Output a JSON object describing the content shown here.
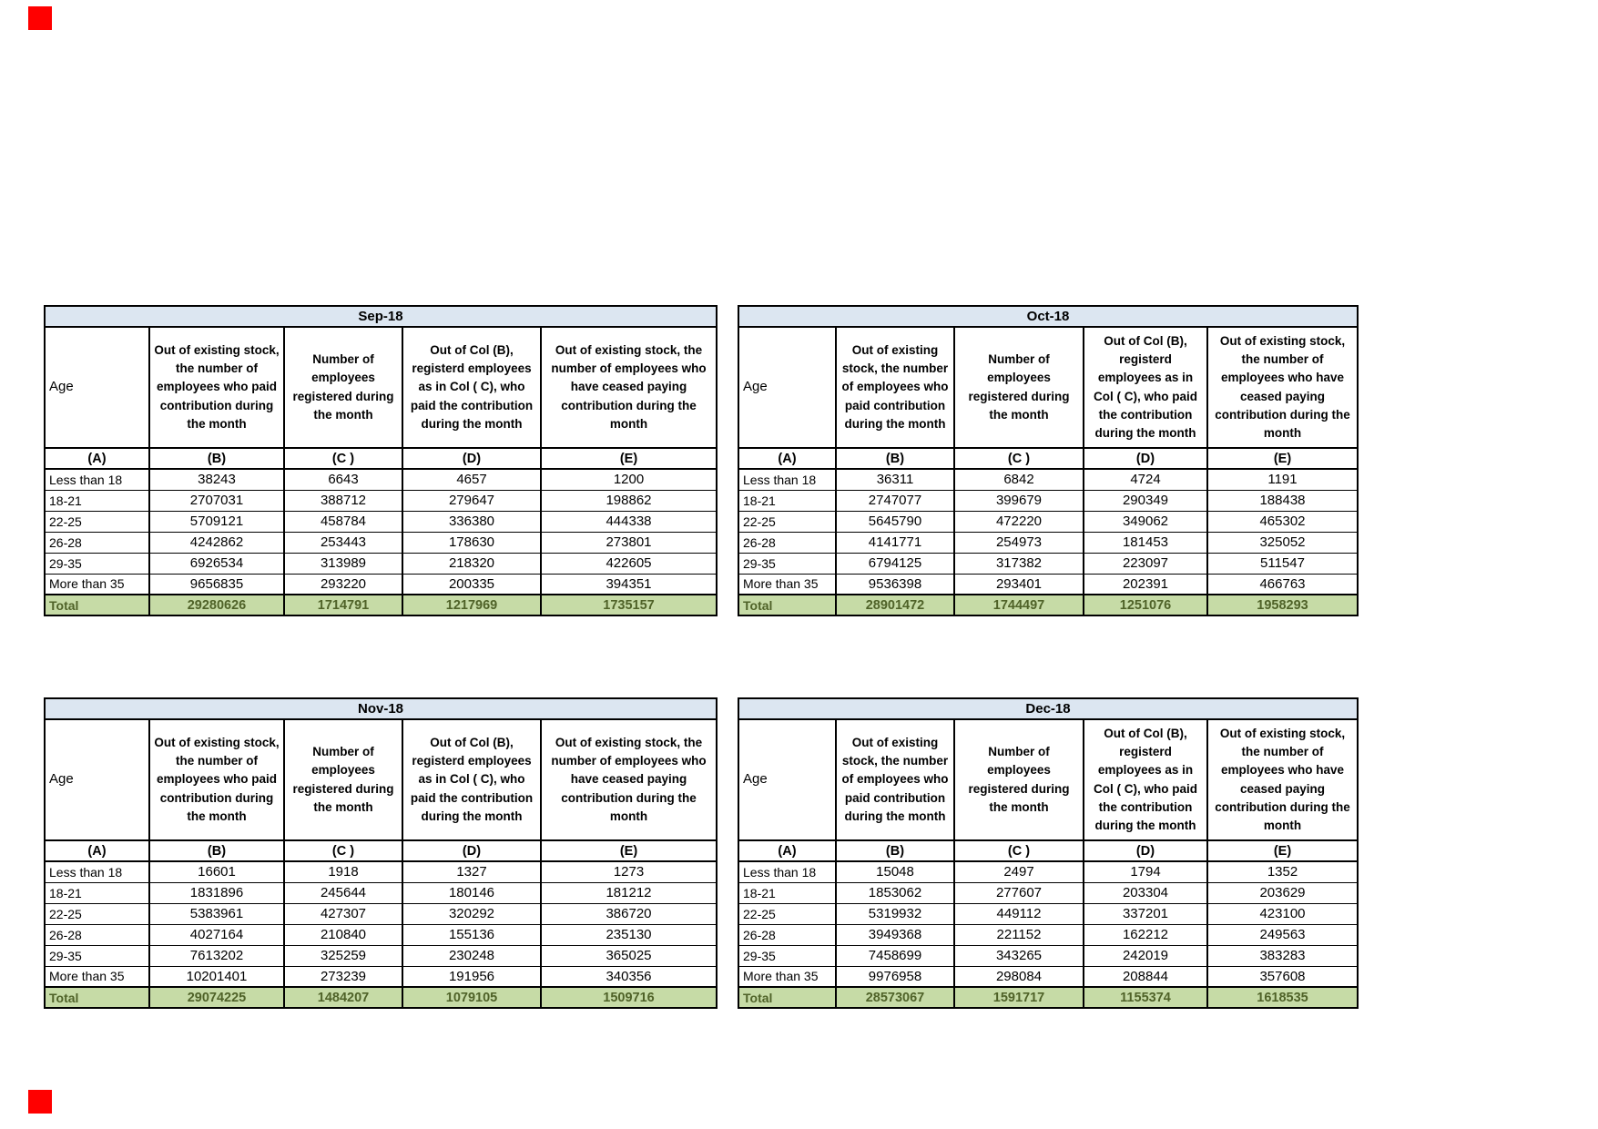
{
  "colors": {
    "title_bg": "#dce6f1",
    "total_bg": "#c6dba6",
    "total_text": "#4f6228",
    "border": "#000000",
    "marker_red": "#ff0000"
  },
  "headers": {
    "age": "Age",
    "col_b": "Out of existing stock, the number of employees who paid contribution during the month",
    "col_c": "Number of employees registered during the month",
    "col_d": "Out of Col (B), registerd employees as in Col ( C), who paid the contribution during the month",
    "col_e": "Out of existing stock, the number of employees who have ceased paying contribution during the month"
  },
  "letters": [
    "(A)",
    "(B)",
    "(C )",
    "(D)",
    "(E)"
  ],
  "total_label": "Total",
  "tables": [
    {
      "title": "Sep-18",
      "rows": [
        {
          "label": "Less than 18",
          "values": [
            "38243",
            "6643",
            "4657",
            "1200"
          ]
        },
        {
          "label": "18-21",
          "values": [
            "2707031",
            "388712",
            "279647",
            "198862"
          ]
        },
        {
          "label": "22-25",
          "values": [
            "5709121",
            "458784",
            "336380",
            "444338"
          ]
        },
        {
          "label": "26-28",
          "values": [
            "4242862",
            "253443",
            "178630",
            "273801"
          ]
        },
        {
          "label": "29-35",
          "values": [
            "6926534",
            "313989",
            "218320",
            "422605"
          ]
        },
        {
          "label": "More than 35",
          "values": [
            "9656835",
            "293220",
            "200335",
            "394351"
          ]
        }
      ],
      "total": [
        "29280626",
        "1714791",
        "1217969",
        "1735157"
      ]
    },
    {
      "title": "Oct-18",
      "rows": [
        {
          "label": "Less than 18",
          "values": [
            "36311",
            "6842",
            "4724",
            "1191"
          ]
        },
        {
          "label": "18-21",
          "values": [
            "2747077",
            "399679",
            "290349",
            "188438"
          ]
        },
        {
          "label": "22-25",
          "values": [
            "5645790",
            "472220",
            "349062",
            "465302"
          ]
        },
        {
          "label": "26-28",
          "values": [
            "4141771",
            "254973",
            "181453",
            "325052"
          ]
        },
        {
          "label": "29-35",
          "values": [
            "6794125",
            "317382",
            "223097",
            "511547"
          ]
        },
        {
          "label": "More than 35",
          "values": [
            "9536398",
            "293401",
            "202391",
            "466763"
          ]
        }
      ],
      "total": [
        "28901472",
        "1744497",
        "1251076",
        "1958293"
      ]
    },
    {
      "title": "Nov-18",
      "rows": [
        {
          "label": "Less than 18",
          "values": [
            "16601",
            "1918",
            "1327",
            "1273"
          ]
        },
        {
          "label": "18-21",
          "values": [
            "1831896",
            "245644",
            "180146",
            "181212"
          ]
        },
        {
          "label": "22-25",
          "values": [
            "5383961",
            "427307",
            "320292",
            "386720"
          ]
        },
        {
          "label": "26-28",
          "values": [
            "4027164",
            "210840",
            "155136",
            "235130"
          ]
        },
        {
          "label": "29-35",
          "values": [
            "7613202",
            "325259",
            "230248",
            "365025"
          ]
        },
        {
          "label": "More than 35",
          "values": [
            "10201401",
            "273239",
            "191956",
            "340356"
          ]
        }
      ],
      "total": [
        "29074225",
        "1484207",
        "1079105",
        "1509716"
      ]
    },
    {
      "title": "Dec-18",
      "rows": [
        {
          "label": "Less than 18",
          "values": [
            "15048",
            "2497",
            "1794",
            "1352"
          ]
        },
        {
          "label": "18-21",
          "values": [
            "1853062",
            "277607",
            "203304",
            "203629"
          ]
        },
        {
          "label": "22-25",
          "values": [
            "5319932",
            "449112",
            "337201",
            "423100"
          ]
        },
        {
          "label": "26-28",
          "values": [
            "3949368",
            "221152",
            "162212",
            "249563"
          ]
        },
        {
          "label": "29-35",
          "values": [
            "7458699",
            "343265",
            "242019",
            "383283"
          ]
        },
        {
          "label": "More than 35",
          "values": [
            "9976958",
            "298084",
            "208844",
            "357608"
          ]
        }
      ],
      "total": [
        "28573067",
        "1591717",
        "1155374",
        "1618535"
      ]
    }
  ]
}
